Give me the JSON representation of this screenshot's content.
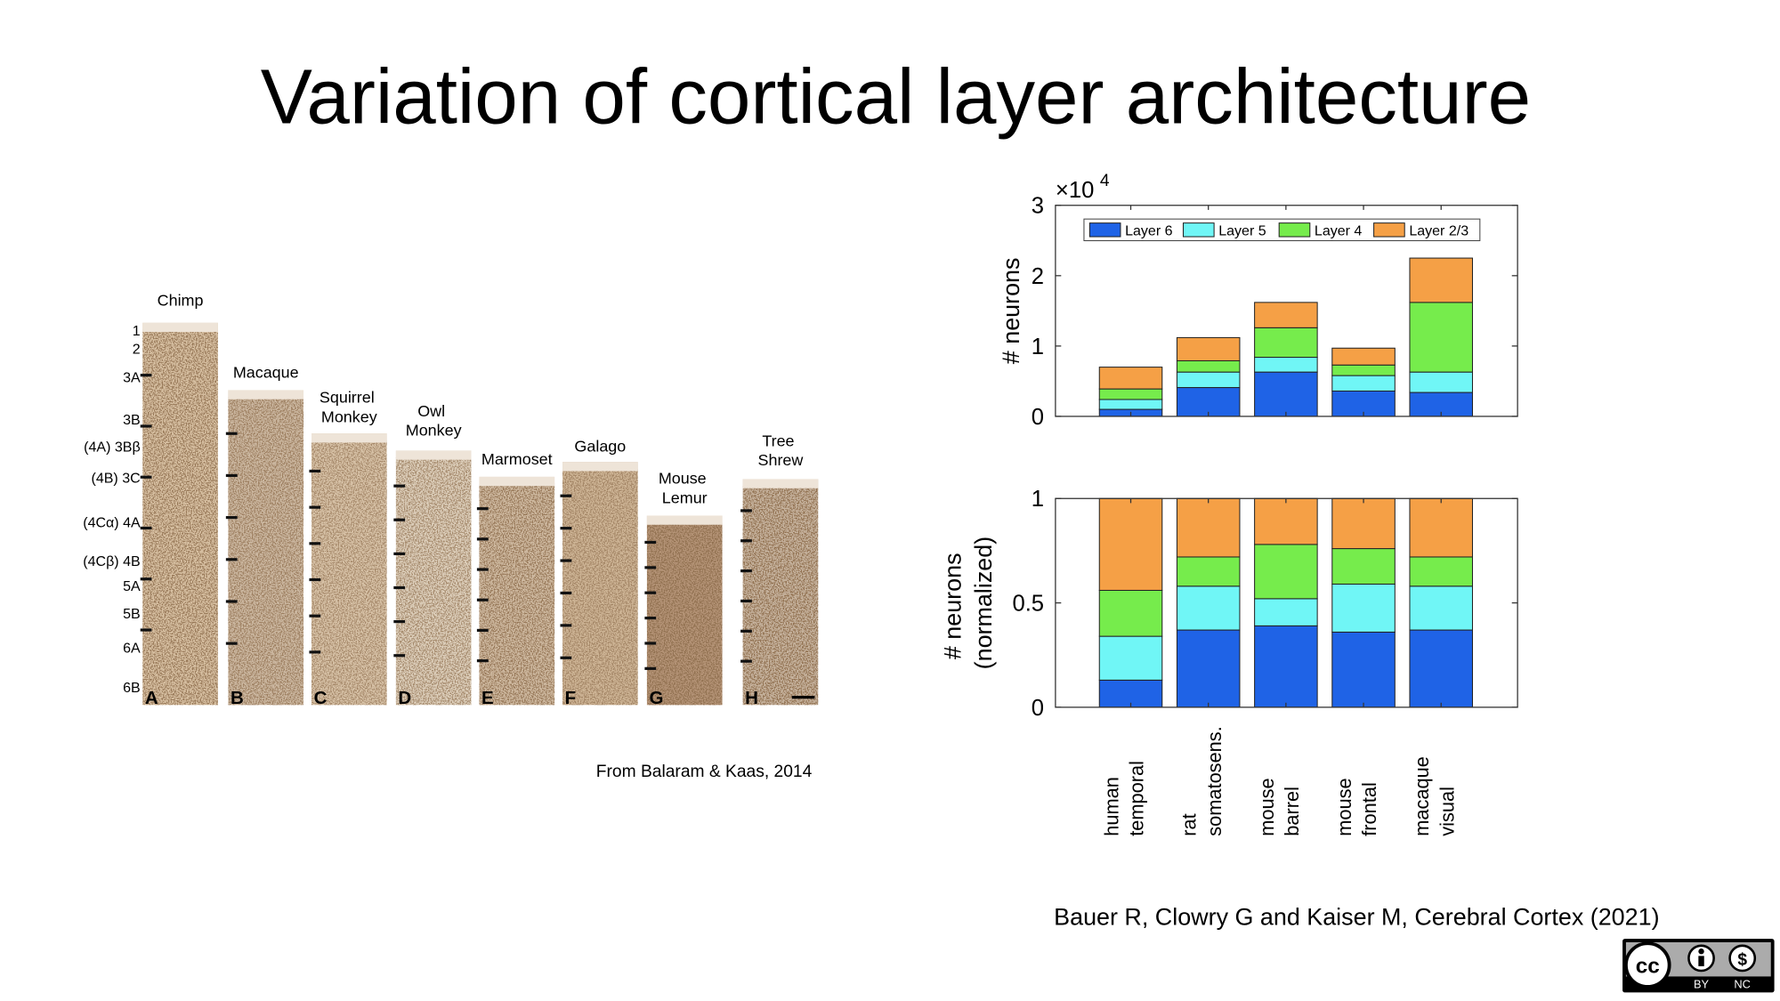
{
  "title": "Variation of cortical layer architecture",
  "histology": {
    "species": [
      "Chimp",
      "Macaque",
      "Squirrel Monkey",
      "Owl Monkey",
      "Marmoset",
      "Galago",
      "Mouse Lemur",
      "Tree Shrew"
    ],
    "panels": [
      "A",
      "B",
      "C",
      "D",
      "E",
      "F",
      "G",
      "H"
    ],
    "layers": [
      "1",
      "2",
      "3A",
      "3B",
      "(4A) 3Bβ",
      "(4B) 3C",
      "(4Cα) 4A",
      "(4Cβ) 4B",
      "5A",
      "5B",
      "6A",
      "6B"
    ],
    "source": "From  Balaram & Kaas, 2014"
  },
  "chart_data": [
    {
      "type": "bar",
      "stacked": true,
      "ylabel": "# neurons",
      "y_multiplier": "×10",
      "y_multiplier_exponent": "4",
      "ylim": [
        0,
        3
      ],
      "yticks": [
        0,
        1,
        2,
        3
      ],
      "legend": "top",
      "series": [
        {
          "name": "Layer 6",
          "color": "#1f63e6",
          "values": [
            0.1,
            0.41,
            0.63,
            0.36,
            0.34
          ]
        },
        {
          "name": "Layer 5",
          "color": "#70f6f6",
          "values": [
            0.14,
            0.22,
            0.21,
            0.22,
            0.29
          ]
        },
        {
          "name": "Layer 4",
          "color": "#76ec4c",
          "values": [
            0.15,
            0.16,
            0.42,
            0.15,
            0.99
          ]
        },
        {
          "name": "Layer 2/3",
          "color": "#f5a046",
          "values": [
            0.31,
            0.33,
            0.36,
            0.24,
            0.63
          ]
        }
      ]
    },
    {
      "type": "bar",
      "stacked": true,
      "ylabel": "# neurons (normalized)",
      "categories": [
        "human temporal",
        "rat somatosens.",
        "mouse barrel",
        "mouse frontal",
        "macaque visual"
      ],
      "ylim": [
        0,
        1
      ],
      "yticks": [
        0,
        0.5,
        1
      ],
      "series": [
        {
          "color": "#1f63e6",
          "values": [
            0.13,
            0.37,
            0.39,
            0.36,
            0.37
          ]
        },
        {
          "color": "#70f6f6",
          "values": [
            0.21,
            0.21,
            0.13,
            0.23,
            0.21
          ]
        },
        {
          "color": "#76ec4c",
          "values": [
            0.22,
            0.14,
            0.26,
            0.17,
            0.14
          ]
        },
        {
          "color": "#f5a046",
          "values": [
            0.44,
            0.28,
            0.22,
            0.24,
            0.28
          ]
        }
      ]
    }
  ],
  "citation": "Bauer R, Clowry G and Kaiser M, Cerebral Cortex (2021)",
  "license": {
    "labels": [
      "BY",
      "NC"
    ]
  }
}
